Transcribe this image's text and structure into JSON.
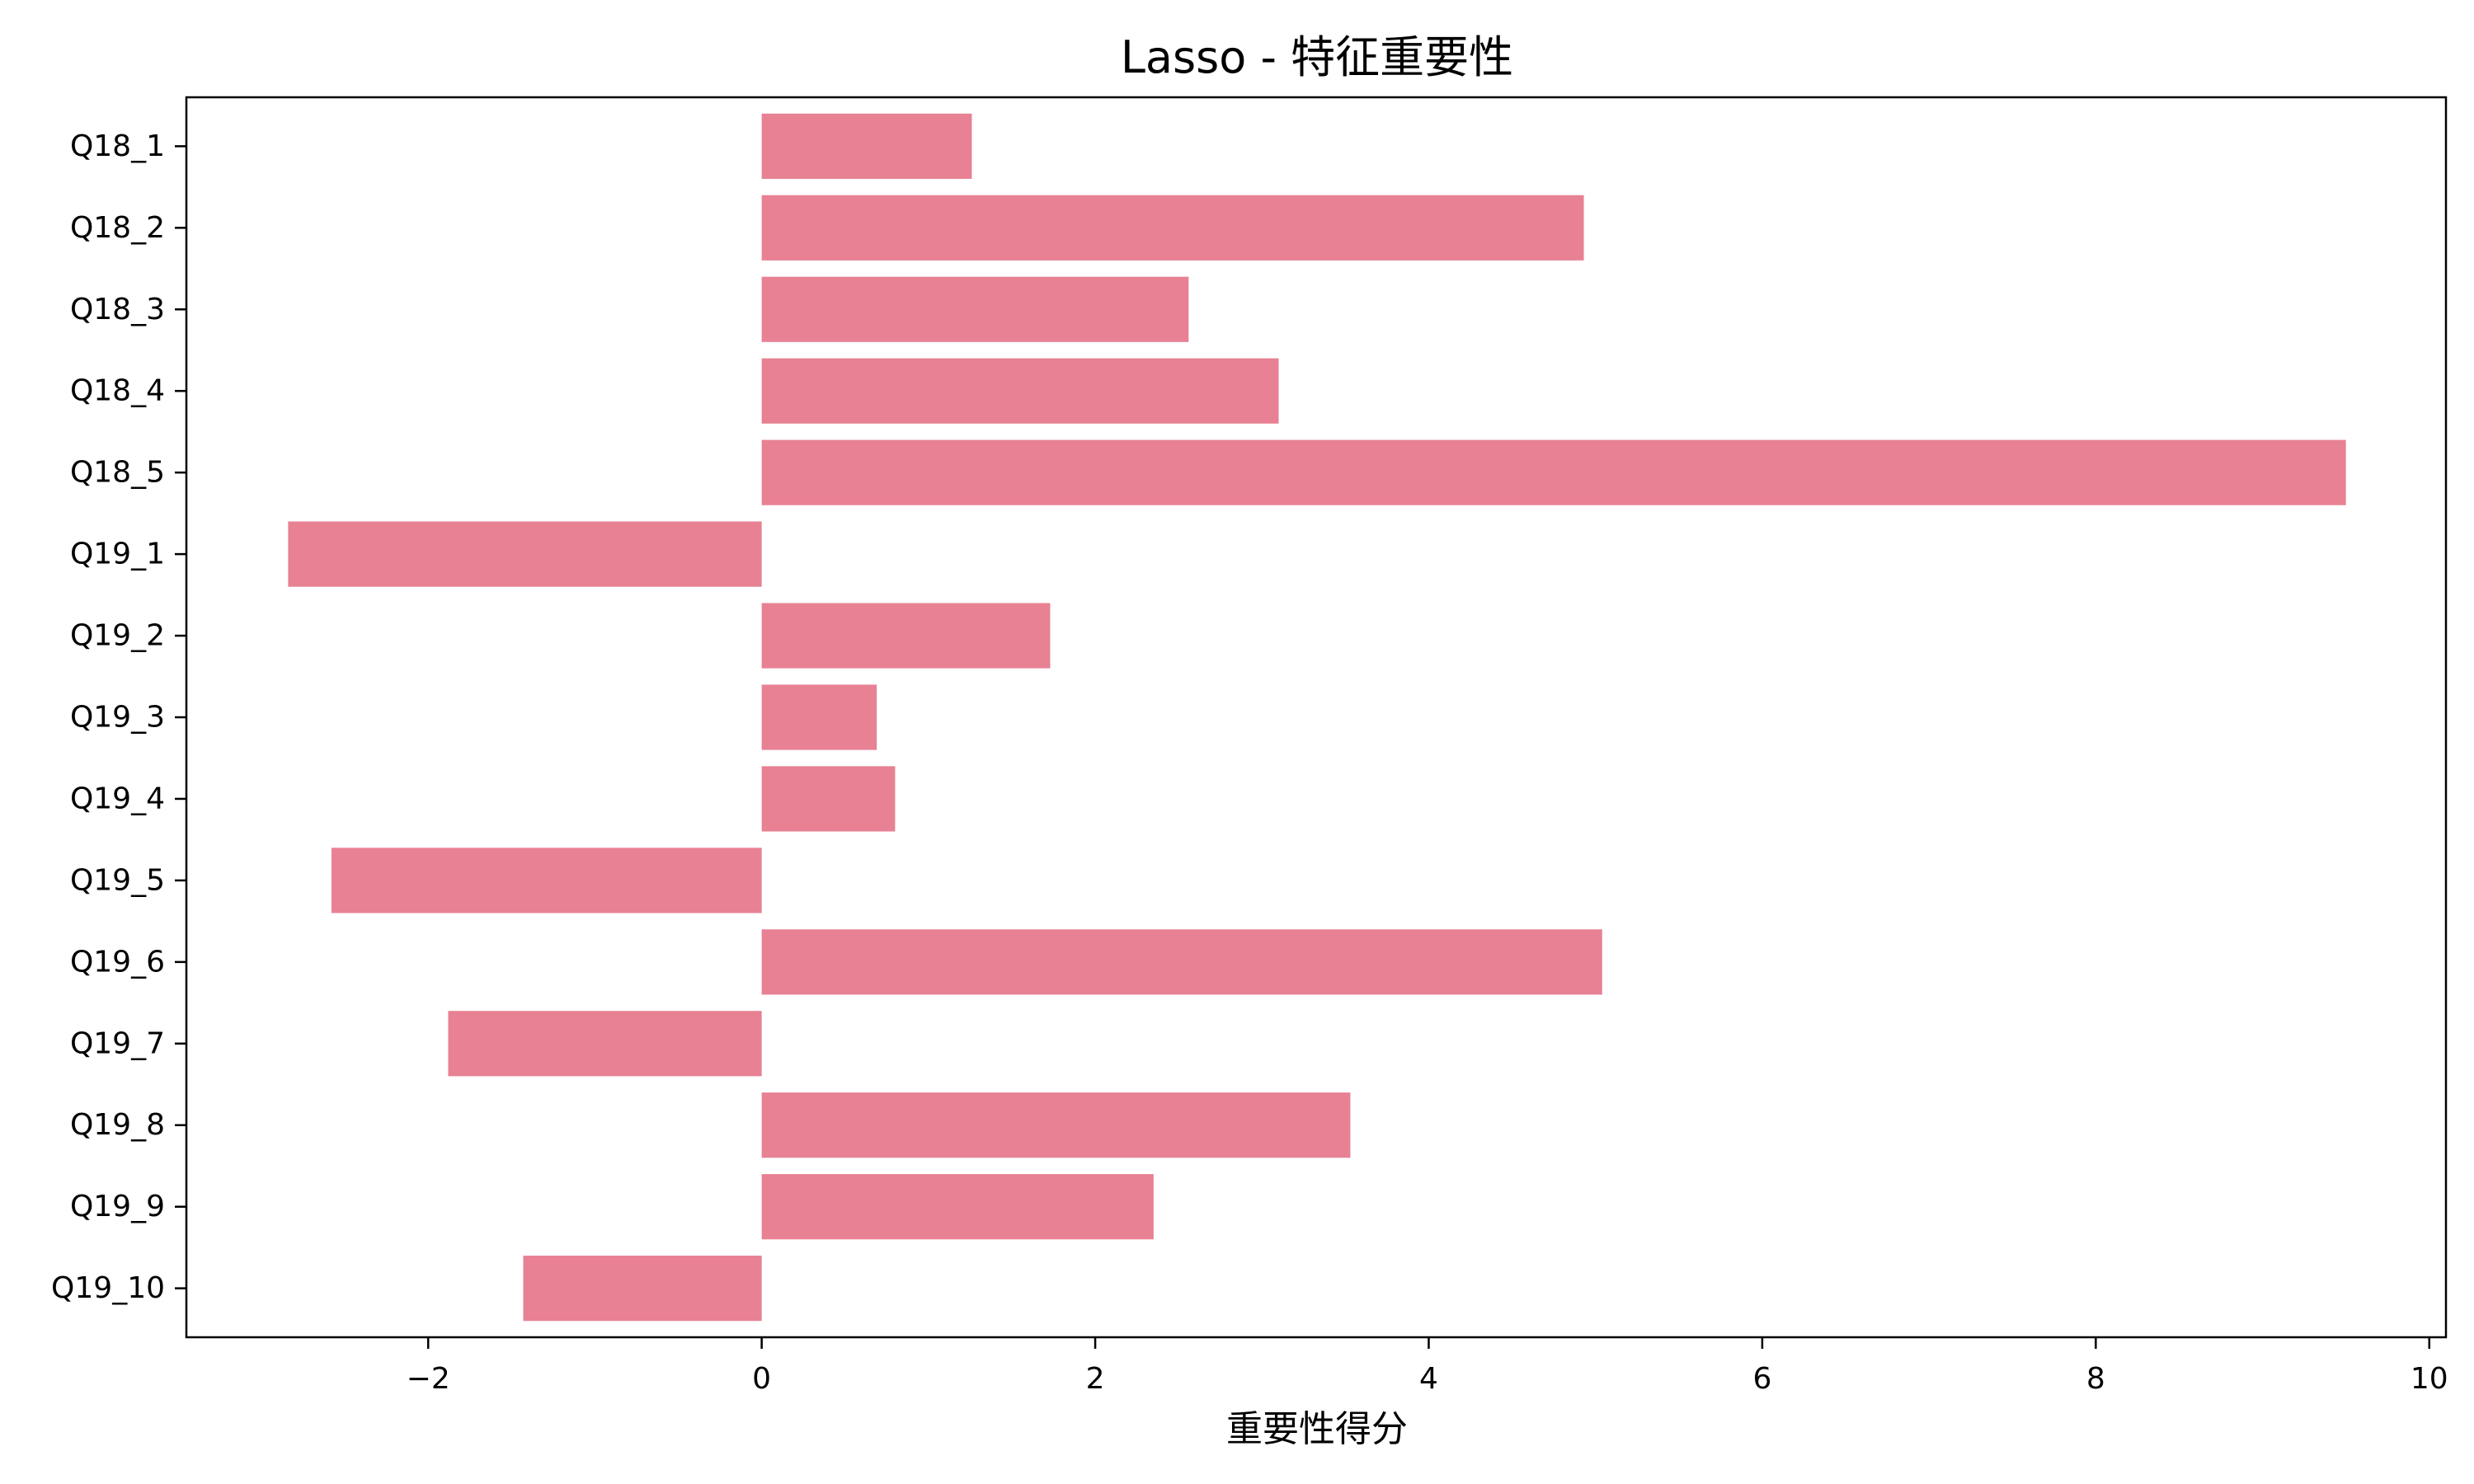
{
  "chart_data": {
    "type": "bar",
    "orientation": "horizontal",
    "title": "Lasso - 特征重要性",
    "xlabel": "重要性得分",
    "ylabel": "",
    "categories": [
      "Q18_1",
      "Q18_2",
      "Q18_3",
      "Q18_4",
      "Q18_5",
      "Q19_1",
      "Q19_2",
      "Q19_3",
      "Q19_4",
      "Q19_5",
      "Q19_6",
      "Q19_7",
      "Q19_8",
      "Q19_9",
      "Q19_10"
    ],
    "values": [
      1.26,
      4.93,
      2.56,
      3.1,
      9.5,
      -2.84,
      1.73,
      0.69,
      0.8,
      -2.58,
      5.04,
      -1.88,
      3.53,
      2.35,
      -1.43
    ],
    "xlim": [
      -3.45,
      10.1
    ],
    "xticks": [
      -2,
      0,
      2,
      4,
      6,
      8,
      10
    ],
    "xtick_labels": [
      "−2",
      "0",
      "2",
      "4",
      "6",
      "8",
      "10"
    ],
    "bar_color": "#e78193",
    "grid": false,
    "legend": "none"
  }
}
